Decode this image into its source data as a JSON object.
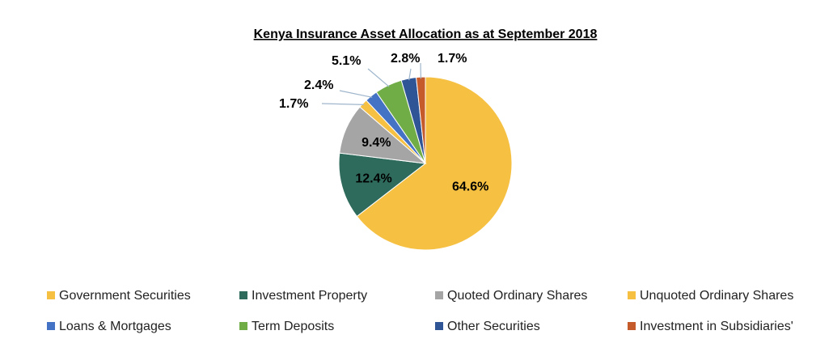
{
  "chart_data": {
    "type": "pie",
    "title": "Kenya Insurance Asset Allocation as at September 2018",
    "series": [
      {
        "name": "Government Securities",
        "value": 64.6,
        "label": "64.6%",
        "color": "#F6C143"
      },
      {
        "name": "Investment Property",
        "value": 12.4,
        "label": "12.4%",
        "color": "#2E6B5C"
      },
      {
        "name": "Quoted Ordinary Shares",
        "value": 9.4,
        "label": "9.4%",
        "color": "#A5A5A5"
      },
      {
        "name": "Unquoted Ordinary Shares",
        "value": 1.7,
        "label": "1.7%",
        "color": "#F6C143"
      },
      {
        "name": "Loans & Mortgages",
        "value": 2.4,
        "label": "2.4%",
        "color": "#4472C4"
      },
      {
        "name": "Term Deposits",
        "value": 5.1,
        "label": "5.1%",
        "color": "#70AD47"
      },
      {
        "name": "Other Securities",
        "value": 2.8,
        "label": "2.8%",
        "color": "#2F5597"
      },
      {
        "name": "Investment in Subsidiaries'",
        "value": 1.7,
        "label": "1.7%",
        "color": "#C55A2B"
      }
    ],
    "legend_position": "bottom"
  }
}
